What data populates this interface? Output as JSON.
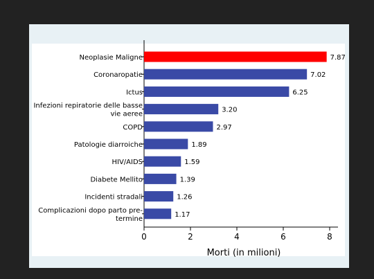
{
  "chart_data": {
    "type": "bar",
    "orientation": "horizontal",
    "categories": [
      "Neoplasie Maligne",
      "Coronaropatie",
      "Ictus",
      "Infezioni repiratorie delle basse vie aeree",
      "COPD",
      "Patologie diarroiche",
      "HIV/AIDS",
      "Diabete Mellito",
      "Incidenti stradali",
      "Complicazioni dopo parto pre-termine"
    ],
    "category_lines": [
      [
        "Neoplasie Maligne"
      ],
      [
        "Coronaropatie"
      ],
      [
        "Ictus"
      ],
      [
        "Infezioni repiratorie delle basse",
        "vie aeree"
      ],
      [
        "COPD"
      ],
      [
        "Patologie diarroiche"
      ],
      [
        "HIV/AIDS"
      ],
      [
        "Diabete Mellito"
      ],
      [
        "Incidenti stradali"
      ],
      [
        "Complicazioni dopo parto pre-",
        "termine"
      ]
    ],
    "values": [
      7.87,
      7.02,
      6.25,
      3.2,
      2.97,
      1.89,
      1.59,
      1.39,
      1.26,
      1.17
    ],
    "value_labels": [
      "7.87",
      "7.02",
      "6.25",
      "3.20",
      "2.97",
      "1.89",
      "1.59",
      "1.39",
      "1.26",
      "1.17"
    ],
    "xlabel": "Morti (in milioni)",
    "xlim": [
      0,
      8
    ],
    "xticks": [
      0,
      2,
      4,
      6,
      8
    ],
    "xtick_labels": [
      "0",
      "2",
      "4",
      "6",
      "8"
    ],
    "highlight_index": 0,
    "colors": {
      "highlight": "#ff0000",
      "bar": "#3a4aa6",
      "axis": "#000000",
      "text": "#000000"
    },
    "grid": false,
    "legend": "none"
  }
}
